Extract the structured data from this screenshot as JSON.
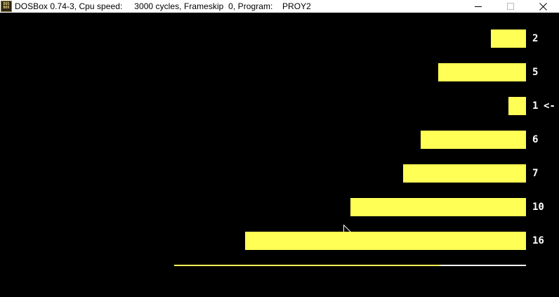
{
  "titlebar": {
    "icon_lines": [
      "DOS",
      "BOX"
    ],
    "title": "DOSBox 0.74-3, Cpu speed:     3000 cycles, Frameskip  0, Program:    PROY2",
    "minimize_icon": "minimize-icon",
    "maximize_icon": "maximize-icon",
    "close_icon": "close-icon"
  },
  "colors": {
    "bar": "#ffff55",
    "label": "#ffffff",
    "background": "#000000"
  },
  "chart_data": {
    "type": "bar",
    "orientation": "horizontal",
    "values": [
      2,
      5,
      1,
      6,
      7,
      10,
      16
    ],
    "labels": [
      "2",
      "5",
      "1",
      "6",
      "7",
      "10",
      "16"
    ],
    "selected_index": 2,
    "selection_marker": "<-"
  }
}
